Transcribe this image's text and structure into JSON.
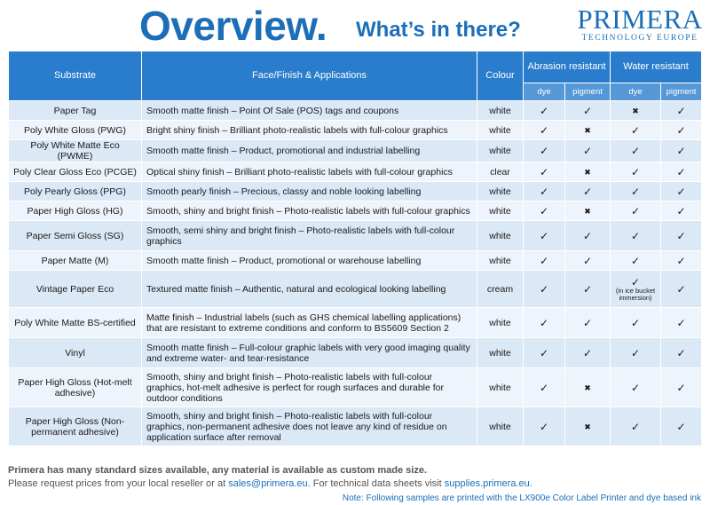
{
  "header": {
    "title": "Overview.",
    "subtitle": "What’s in there?",
    "brand_name": "PRIMERA",
    "brand_tagline": "TECHNOLOGY EUROPE"
  },
  "table": {
    "headers": {
      "substrate": "Substrate",
      "face": "Face/Finish & Applications",
      "colour": "Colour",
      "abrasion": "Abrasion resistant",
      "water": "Water resistant",
      "dye": "dye",
      "pigment": "pigment"
    },
    "rows": [
      {
        "substrate": "Paper Tag",
        "face": "Smooth matte finish – Point Of Sale (POS) tags and coupons",
        "colour": "white",
        "abrasion_dye": "✓",
        "abrasion_pigment": "✓",
        "water_dye": "✖",
        "water_pigment": "✓",
        "water_note": ""
      },
      {
        "substrate": "Poly White Gloss (PWG)",
        "face": "Bright shiny finish – Brilliant photo-realistic labels with full-colour graphics",
        "colour": "white",
        "abrasion_dye": "✓",
        "abrasion_pigment": "✖",
        "water_dye": "✓",
        "water_pigment": "✓",
        "water_note": ""
      },
      {
        "substrate": "Poly White Matte Eco (PWME)",
        "face": "Smooth matte finish – Product, promotional and industrial labelling",
        "colour": "white",
        "abrasion_dye": "✓",
        "abrasion_pigment": "✓",
        "water_dye": "✓",
        "water_pigment": "✓",
        "water_note": ""
      },
      {
        "substrate": "Poly Clear Gloss Eco (PCGE)",
        "face": "Optical shiny finish – Brilliant photo-realistic labels with full-colour graphics",
        "colour": "clear",
        "abrasion_dye": "✓",
        "abrasion_pigment": "✖",
        "water_dye": "✓",
        "water_pigment": "✓",
        "water_note": ""
      },
      {
        "substrate": "Poly Pearly Gloss (PPG)",
        "face": "Smooth pearly finish – Precious, classy and noble looking labelling",
        "colour": "white",
        "abrasion_dye": "✓",
        "abrasion_pigment": "✓",
        "water_dye": "✓",
        "water_pigment": "✓",
        "water_note": ""
      },
      {
        "substrate": "Paper High Gloss (HG)",
        "face": "Smooth, shiny and bright finish – Photo-realistic labels with full-colour graphics",
        "colour": "white",
        "abrasion_dye": "✓",
        "abrasion_pigment": "✖",
        "water_dye": "✓",
        "water_pigment": "✓",
        "water_note": ""
      },
      {
        "substrate": "Paper Semi Gloss (SG)",
        "face": "Smooth, semi shiny and bright finish – Photo-realistic labels with full-colour graphics",
        "colour": "white",
        "abrasion_dye": "✓",
        "abrasion_pigment": "✓",
        "water_dye": "✓",
        "water_pigment": "✓",
        "water_note": ""
      },
      {
        "substrate": "Paper Matte (M)",
        "face": "Smooth matte finish – Product, promotional or warehouse labelling",
        "colour": "white",
        "abrasion_dye": "✓",
        "abrasion_pigment": "✓",
        "water_dye": "✓",
        "water_pigment": "✓",
        "water_note": ""
      },
      {
        "substrate": "Vintage Paper Eco",
        "face": "Textured matte finish – Authentic, natural and ecological looking labelling",
        "colour": "cream",
        "abrasion_dye": "✓",
        "abrasion_pigment": "✓",
        "water_dye": "✓",
        "water_pigment": "✓",
        "water_note": "(in ice bucket immersion)"
      },
      {
        "substrate": "Poly White Matte BS-certified",
        "face": "Matte finish – Industrial labels (such as GHS chemical labelling applications) that are resistant to extreme conditions and conform to BS5609 Section 2",
        "colour": "white",
        "abrasion_dye": "✓",
        "abrasion_pigment": "✓",
        "water_dye": "✓",
        "water_pigment": "✓",
        "water_note": ""
      },
      {
        "substrate": "Vinyl",
        "face": "Smooth matte finish – Full-colour graphic labels with very good imaging quality and extreme water- and tear-resistance",
        "colour": "white",
        "abrasion_dye": "✓",
        "abrasion_pigment": "✓",
        "water_dye": "✓",
        "water_pigment": "✓",
        "water_note": ""
      },
      {
        "substrate": "Paper High Gloss (Hot-melt adhesive)",
        "face": "Smooth, shiny and bright finish – Photo-realistic labels with full-colour graphics, hot-melt adhesive is perfect for rough surfaces and durable for outdoor conditions",
        "colour": "white",
        "abrasion_dye": "✓",
        "abrasion_pigment": "✖",
        "water_dye": "✓",
        "water_pigment": "✓",
        "water_note": ""
      },
      {
        "substrate": "Paper High Gloss (Non-permanent adhesive)",
        "face": "Smooth, shiny and bright finish – Photo-realistic labels with full-colour graphics, non-permanent adhesive does not leave any kind of residue on application surface after removal",
        "colour": "white",
        "abrasion_dye": "✓",
        "abrasion_pigment": "✖",
        "water_dye": "✓",
        "water_pigment": "✓",
        "water_note": ""
      }
    ]
  },
  "footer": {
    "line1": "Primera has many standard sizes available, any material is available as custom made size.",
    "line2_a": "Please request prices from your local reseller or at ",
    "line2_email": "sales@primera.eu",
    "line2_b": ". For technical data sheets visit ",
    "line2_site": "supplies.primera.eu",
    "line2_c": ".",
    "note": "Note: Following samples are printed with the LX900e Color Label Printer and dye based ink"
  }
}
